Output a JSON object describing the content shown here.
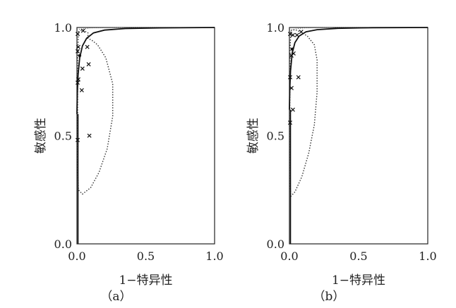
{
  "chart_data": [
    {
      "type": "scatter",
      "panel_label": "（a）",
      "xlabel": "1−特异性",
      "ylabel": "敏感性",
      "xlim": [
        0.0,
        1.0
      ],
      "ylim": [
        0.0,
        1.0
      ],
      "xticks": [
        "0.0",
        "0.5",
        "1.0"
      ],
      "yticks": [
        "0.0",
        "0.5",
        "1.0"
      ],
      "grid": false,
      "legend": "none",
      "study_points": [
        {
          "x": 0.0,
          "y": 0.97
        },
        {
          "x": 0.04,
          "y": 0.985
        },
        {
          "x": 0.0,
          "y": 0.89
        },
        {
          "x": 0.005,
          "y": 0.91
        },
        {
          "x": 0.07,
          "y": 0.91
        },
        {
          "x": 0.035,
          "y": 0.81
        },
        {
          "x": 0.08,
          "y": 0.83
        },
        {
          "x": 0.0,
          "y": 0.745
        },
        {
          "x": 0.005,
          "y": 0.76
        },
        {
          "x": 0.03,
          "y": 0.71
        },
        {
          "x": 0.085,
          "y": 0.5
        },
        {
          "x": 0.0,
          "y": 0.48
        }
      ],
      "sroc_curve": [
        [
          0.0,
          0.6
        ],
        [
          0.003,
          0.7
        ],
        [
          0.008,
          0.78
        ],
        [
          0.02,
          0.86
        ],
        [
          0.04,
          0.915
        ],
        [
          0.07,
          0.95
        ],
        [
          0.12,
          0.975
        ],
        [
          0.2,
          0.988
        ],
        [
          0.35,
          0.995
        ],
        [
          0.6,
          0.998
        ],
        [
          1.0,
          1.0
        ]
      ],
      "summary_point": {
        "x": 0.02,
        "y": 0.87
      },
      "confidence_contour": [
        [
          0.01,
          0.98
        ],
        [
          0.04,
          0.99
        ],
        [
          0.08,
          0.975
        ],
        [
          0.08,
          0.95
        ],
        [
          0.11,
          0.94
        ],
        [
          0.15,
          0.92
        ],
        [
          0.21,
          0.86
        ],
        [
          0.26,
          0.74
        ],
        [
          0.26,
          0.59
        ],
        [
          0.22,
          0.44
        ],
        [
          0.16,
          0.33
        ],
        [
          0.1,
          0.26
        ],
        [
          0.04,
          0.23
        ],
        [
          0.01,
          0.25
        ],
        [
          0.005,
          0.35
        ],
        [
          0.005,
          0.6
        ],
        [
          0.005,
          0.85
        ],
        [
          0.01,
          0.98
        ]
      ],
      "prediction_region": [
        [
          0.0,
          0.99
        ],
        [
          0.1,
          0.998
        ],
        [
          0.3,
          1.0
        ],
        [
          0.6,
          1.0
        ],
        [
          1.0,
          1.0
        ]
      ]
    },
    {
      "type": "scatter",
      "panel_label": "（b）",
      "xlabel": "1−特异性",
      "ylabel": "敏感性",
      "xlim": [
        0.0,
        1.0
      ],
      "ylim": [
        0.0,
        1.0
      ],
      "xticks": [
        "0.0",
        "0.5",
        "1.0"
      ],
      "yticks": [
        "0.0",
        "0.5",
        "1.0"
      ],
      "grid": false,
      "legend": "none",
      "study_points": [
        {
          "x": 0.0,
          "y": 0.97
        },
        {
          "x": 0.02,
          "y": 0.965
        },
        {
          "x": 0.05,
          "y": 0.965
        },
        {
          "x": 0.08,
          "y": 0.98
        },
        {
          "x": 0.01,
          "y": 0.87
        },
        {
          "x": 0.025,
          "y": 0.88
        },
        {
          "x": 0.0,
          "y": 0.77
        },
        {
          "x": 0.06,
          "y": 0.77
        },
        {
          "x": 0.01,
          "y": 0.72
        },
        {
          "x": 0.02,
          "y": 0.62
        },
        {
          "x": 0.0,
          "y": 0.56
        }
      ],
      "sroc_curve": [
        [
          0.0,
          0.62
        ],
        [
          0.003,
          0.72
        ],
        [
          0.008,
          0.8
        ],
        [
          0.02,
          0.88
        ],
        [
          0.04,
          0.93
        ],
        [
          0.07,
          0.96
        ],
        [
          0.12,
          0.98
        ],
        [
          0.2,
          0.99
        ],
        [
          0.35,
          0.996
        ],
        [
          0.6,
          0.999
        ],
        [
          1.0,
          1.0
        ]
      ],
      "summary_point": {
        "x": 0.02,
        "y": 0.9
      },
      "confidence_contour": [
        [
          0.01,
          0.985
        ],
        [
          0.04,
          0.99
        ],
        [
          0.08,
          0.98
        ],
        [
          0.13,
          0.96
        ],
        [
          0.18,
          0.92
        ],
        [
          0.2,
          0.85
        ],
        [
          0.2,
          0.7
        ],
        [
          0.18,
          0.55
        ],
        [
          0.14,
          0.42
        ],
        [
          0.09,
          0.31
        ],
        [
          0.04,
          0.24
        ],
        [
          0.01,
          0.22
        ],
        [
          0.003,
          0.3
        ],
        [
          0.003,
          0.5
        ],
        [
          0.003,
          0.75
        ],
        [
          0.005,
          0.9
        ],
        [
          0.01,
          0.985
        ]
      ],
      "prediction_region": [
        [
          0.0,
          0.99
        ],
        [
          0.1,
          0.998
        ],
        [
          0.3,
          1.0
        ],
        [
          0.6,
          1.0
        ],
        [
          1.0,
          1.0
        ]
      ]
    }
  ]
}
